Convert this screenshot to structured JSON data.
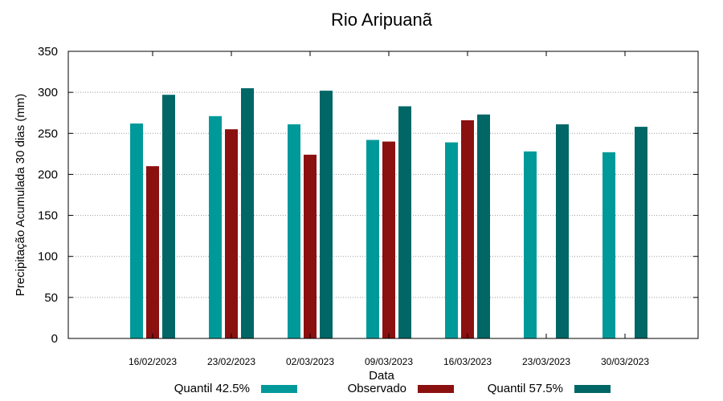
{
  "chart_data": {
    "type": "bar",
    "title": "Rio Aripuanã",
    "xlabel": "Data",
    "ylabel": "Precipitação Acumulada 30 dias (mm)",
    "ylim": [
      0,
      350
    ],
    "yticks": [
      0,
      50,
      100,
      150,
      200,
      250,
      300,
      350
    ],
    "grid": true,
    "legend_position": "bottom",
    "categories": [
      "16/02/2023",
      "23/02/2023",
      "02/03/2023",
      "09/03/2023",
      "16/03/2023",
      "23/03/2023",
      "30/03/2023"
    ],
    "series": [
      {
        "name": "Quantil 42.5%",
        "color": "#009999",
        "values": [
          262,
          271,
          261,
          242,
          239,
          228,
          227
        ]
      },
      {
        "name": "Observado",
        "color": "#8b1010",
        "values": [
          210,
          255,
          224,
          240,
          266,
          null,
          null
        ]
      },
      {
        "name": "Quantil 57.5%",
        "color": "#006666",
        "values": [
          297,
          305,
          302,
          283,
          273,
          261,
          258
        ]
      }
    ]
  }
}
